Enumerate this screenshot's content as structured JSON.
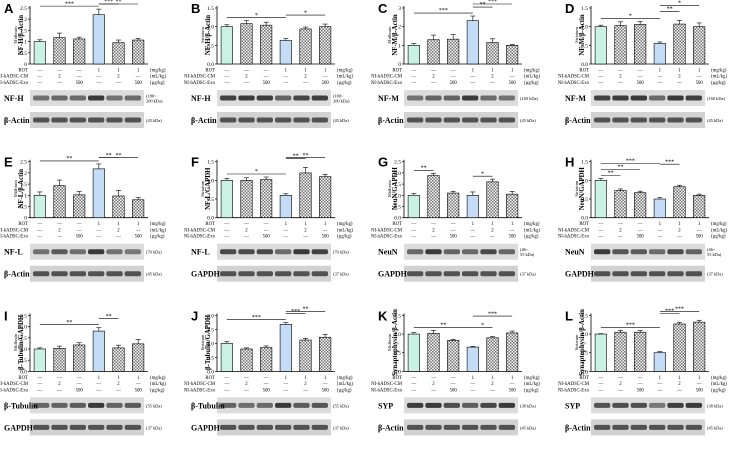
{
  "figure": {
    "treatment_rows": [
      "ROT",
      "NI-hADSC-CM",
      "NI-hADSC-Exo"
    ],
    "row_units": [
      "(mg/kg)",
      "(mL/kg)",
      "(µg/kg)"
    ],
    "groups": [
      [
        "—",
        "—",
        "—"
      ],
      [
        "—",
        "2",
        "—"
      ],
      [
        "—",
        "—",
        "500"
      ],
      [
        "1",
        "—",
        "—"
      ],
      [
        "1",
        "2",
        "—"
      ],
      [
        "1",
        "—",
        "500"
      ]
    ],
    "colors": {
      "bar1": "#c9f2e4",
      "bar4": "#c4dcf5",
      "hatch": "#6f6f6f"
    }
  },
  "chart_data": [
    {
      "type": "bar",
      "panel": "A",
      "ylabel": "NF-H/β-Actin",
      "region": "Midbrain",
      "ylim": [
        0,
        2.5
      ],
      "ticks": [
        "0",
        "0.5",
        "1",
        "1.5",
        "2",
        "2.5"
      ],
      "values": [
        1.0,
        1.18,
        1.12,
        2.2,
        0.95,
        1.07
      ],
      "errors": [
        0.08,
        0.2,
        0.08,
        0.25,
        0.12,
        0.07
      ],
      "sig": [
        {
          "from": 1,
          "to": 4,
          "label": "***"
        },
        {
          "from": 4,
          "to": 5,
          "label": "***"
        },
        {
          "from": 4,
          "to": 6,
          "label": "**"
        }
      ],
      "blots": [
        {
          "label": "NF-H",
          "kda": "(180~\n200 kDa)"
        },
        {
          "label": "β-Actin",
          "kda": "(45 kDa)"
        }
      ]
    },
    {
      "type": "bar",
      "panel": "B",
      "ylabel": "NF-H/β-Actin",
      "region": "Striatum",
      "ylim": [
        0,
        1.5
      ],
      "ticks": [
        "0.0",
        "0.5",
        "1.0",
        "1.5"
      ],
      "values": [
        1.0,
        1.08,
        1.04,
        0.63,
        0.94,
        1.0
      ],
      "errors": [
        0.05,
        0.08,
        0.08,
        0.05,
        0.05,
        0.07
      ],
      "sig": [
        {
          "from": 1,
          "to": 4,
          "label": "*"
        },
        {
          "from": 4,
          "to": 6,
          "label": "*"
        }
      ],
      "blots": [
        {
          "label": "NF-H",
          "kda": "(180~\n200 kDa)"
        },
        {
          "label": "β-Actin",
          "kda": "(45 kDa)"
        }
      ]
    },
    {
      "type": "bar",
      "panel": "C",
      "ylabel": "NF-M/β-Actin",
      "region": "Midbrain",
      "ylim": [
        0,
        3
      ],
      "ticks": [
        "0",
        "1",
        "2",
        "3"
      ],
      "values": [
        1.0,
        1.3,
        1.33,
        2.32,
        1.15,
        1.0
      ],
      "errors": [
        0.1,
        0.25,
        0.25,
        0.25,
        0.2,
        0.05
      ],
      "sig": [
        {
          "from": 1,
          "to": 4,
          "label": "***"
        },
        {
          "from": 4,
          "to": 5,
          "label": "**"
        },
        {
          "from": 4,
          "to": 6,
          "label": "***"
        }
      ],
      "blots": [
        {
          "label": "NF-M",
          "kda": "(160 kDa)"
        },
        {
          "label": "β-Actin",
          "kda": "(45 kDa)"
        }
      ]
    },
    {
      "type": "bar",
      "panel": "D",
      "ylabel": "NF-M/β-Actin",
      "region": "Striatum",
      "ylim": [
        0,
        1.5
      ],
      "ticks": [
        "0.0",
        "0.5",
        "1.0",
        "1.5"
      ],
      "values": [
        1.0,
        1.03,
        1.06,
        0.55,
        1.07,
        1.0
      ],
      "errors": [
        0.04,
        0.1,
        0.08,
        0.04,
        0.1,
        0.1
      ],
      "sig": [
        {
          "from": 1,
          "to": 4,
          "label": "*"
        },
        {
          "from": 4,
          "to": 5,
          "label": "**"
        },
        {
          "from": 4,
          "to": 6,
          "label": "*"
        }
      ],
      "blots": [
        {
          "label": "NF-M",
          "kda": "(160 kDa)"
        },
        {
          "label": "β-Actin",
          "kda": "(45 kDa)"
        }
      ]
    },
    {
      "type": "bar",
      "panel": "E",
      "ylabel": "NF-L/β-Actin",
      "region": "Midbrain",
      "ylim": [
        0,
        2.5
      ],
      "ticks": [
        "0",
        "0.5",
        "1",
        "1.5",
        "2",
        "2.5"
      ],
      "values": [
        1.0,
        1.43,
        1.02,
        2.18,
        0.97,
        0.8
      ],
      "errors": [
        0.15,
        0.25,
        0.15,
        0.22,
        0.25,
        0.1
      ],
      "sig": [
        {
          "from": 1,
          "to": 4,
          "label": "**"
        },
        {
          "from": 4,
          "to": 5,
          "label": "**"
        },
        {
          "from": 4,
          "to": 6,
          "label": "**"
        }
      ],
      "blots": [
        {
          "label": "NF-L",
          "kda": "(70 kDa)"
        },
        {
          "label": "β-Actin",
          "kda": "(45 kDa)"
        }
      ]
    },
    {
      "type": "bar",
      "panel": "F",
      "ylabel": "NF-L/GAPDH",
      "region": "Striatum",
      "ylim": [
        0,
        1.5
      ],
      "ticks": [
        "0.0",
        "0.5",
        "1.0",
        "1.5"
      ],
      "values": [
        1.0,
        1.0,
        1.02,
        0.6,
        1.2,
        1.1
      ],
      "errors": [
        0.05,
        0.07,
        0.07,
        0.04,
        0.15,
        0.06
      ],
      "sig": [
        {
          "from": 1,
          "to": 4,
          "label": "*"
        },
        {
          "from": 4,
          "to": 5,
          "label": "**"
        },
        {
          "from": 4,
          "to": 6,
          "label": "**"
        }
      ],
      "blots": [
        {
          "label": "NF-L",
          "kda": "(70 kDa)"
        },
        {
          "label": "GAPDH",
          "kda": "(37 kDa)"
        }
      ]
    },
    {
      "type": "bar",
      "panel": "G",
      "ylabel": "NeuN/GAPDH",
      "region": "Midbrain",
      "ylim": [
        0,
        2.5
      ],
      "ticks": [
        "0.0",
        "0.5",
        "1.0",
        "1.5",
        "2.0",
        "2.5"
      ],
      "values": [
        1.0,
        1.88,
        1.1,
        1.0,
        1.6,
        1.05
      ],
      "errors": [
        0.08,
        0.1,
        0.08,
        0.15,
        0.12,
        0.12
      ],
      "sig": [
        {
          "from": 1,
          "to": 2,
          "label": "**"
        },
        {
          "from": 4,
          "to": 5,
          "label": "*"
        }
      ],
      "blots": [
        {
          "label": "NeuN",
          "kda": "(46~\n55 kDa)"
        },
        {
          "label": "GAPDH",
          "kda": "(37 kDa)"
        }
      ]
    },
    {
      "type": "bar",
      "panel": "H",
      "ylabel": "NeuN/GAPDH",
      "region": "Striatum",
      "ylim": [
        0,
        1.5
      ],
      "ticks": [
        "0.0",
        "0.5",
        "1.0",
        "1.5"
      ],
      "values": [
        1.0,
        0.73,
        0.67,
        0.5,
        0.83,
        0.6
      ],
      "errors": [
        0.05,
        0.04,
        0.04,
        0.04,
        0.04,
        0.03
      ],
      "sig": [
        {
          "from": 1,
          "to": 2,
          "label": "**"
        },
        {
          "from": 1,
          "to": 3,
          "label": "**"
        },
        {
          "from": 1,
          "to": 4,
          "label": "***"
        },
        {
          "from": 4,
          "to": 5,
          "label": "***"
        }
      ],
      "blots": [
        {
          "label": "NeuN",
          "kda": "(46~\n55 kDa)"
        },
        {
          "label": "GAPDH",
          "kda": "(37 kDa)"
        }
      ]
    },
    {
      "type": "bar",
      "panel": "I",
      "ylabel": "β-Tubulin/GAPDH",
      "region": "Midbrain",
      "ylim": [
        0,
        2.5
      ],
      "ticks": [
        "0.0",
        "0.5",
        "1.0",
        "1.5",
        "2.0",
        "2.5"
      ],
      "values": [
        1.0,
        1.03,
        1.18,
        1.8,
        1.05,
        1.23
      ],
      "errors": [
        0.05,
        0.1,
        0.1,
        0.15,
        0.12,
        0.2
      ],
      "sig": [
        {
          "from": 1,
          "to": 4,
          "label": "**"
        },
        {
          "from": 4,
          "to": 5,
          "label": "**"
        }
      ],
      "blots": [
        {
          "label": "β-Tubulin",
          "kda": "(55 kDa)"
        },
        {
          "label": "GAPDH",
          "kda": "(37 kDa)"
        }
      ]
    },
    {
      "type": "bar",
      "panel": "J",
      "ylabel": "β-Tubulin/GAPDH",
      "region": "Striatum",
      "ylim": [
        0,
        2
      ],
      "ticks": [
        "0.0",
        "0.5",
        "1.0",
        "1.5",
        "2.0"
      ],
      "values": [
        1.0,
        0.8,
        0.85,
        1.68,
        1.12,
        1.22
      ],
      "errors": [
        0.06,
        0.04,
        0.06,
        0.06,
        0.06,
        0.1
      ],
      "sig": [
        {
          "from": 1,
          "to": 4,
          "label": "***"
        },
        {
          "from": 4,
          "to": 5,
          "label": "***"
        },
        {
          "from": 4,
          "to": 6,
          "label": "**"
        }
      ],
      "blots": [
        {
          "label": "β-Tubulin",
          "kda": "(55 kDa)"
        },
        {
          "label": "GAPDH",
          "kda": "(37 kDa)"
        }
      ]
    },
    {
      "type": "bar",
      "panel": "K",
      "ylabel": "Synaptophysin/β-Actin",
      "region": "Midbrain",
      "ylim": [
        0,
        1.5
      ],
      "ticks": [
        "0.0",
        "0.5",
        "1.0",
        "1.5"
      ],
      "values": [
        1.0,
        1.02,
        0.83,
        0.65,
        0.9,
        1.03
      ],
      "errors": [
        0.04,
        0.08,
        0.03,
        0.02,
        0.03,
        0.05
      ],
      "sig": [
        {
          "from": 1,
          "to": 4,
          "label": "**"
        },
        {
          "from": 4,
          "to": 5,
          "label": "*"
        },
        {
          "from": 4,
          "to": 6,
          "label": "***"
        }
      ],
      "blots": [
        {
          "label": "SYP",
          "kda": "(38 kDa)"
        },
        {
          "label": "β-Actin",
          "kda": "(45 kDa)"
        }
      ]
    },
    {
      "type": "bar",
      "panel": "L",
      "ylabel": "Synaptophysin/β-Actin",
      "region": "Striatum",
      "ylim": [
        0,
        1.5
      ],
      "ticks": [
        "0.0",
        "0.5",
        "1.0",
        "1.5"
      ],
      "values": [
        1.0,
        1.05,
        1.05,
        0.5,
        1.27,
        1.32
      ],
      "errors": [
        0.01,
        0.05,
        0.05,
        0.03,
        0.04,
        0.05
      ],
      "sig": [
        {
          "from": 1,
          "to": 4,
          "label": "***"
        },
        {
          "from": 4,
          "to": 5,
          "label": "***"
        },
        {
          "from": 4,
          "to": 6,
          "label": "***"
        }
      ],
      "blots": [
        {
          "label": "SYP",
          "kda": "(38 kDa)"
        },
        {
          "label": "β-Actin",
          "kda": "(45 kDa)"
        }
      ]
    }
  ]
}
